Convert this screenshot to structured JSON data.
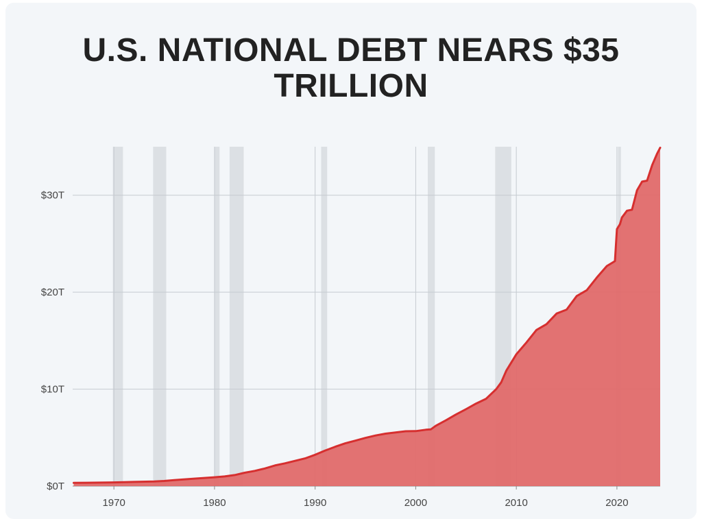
{
  "chart_data": {
    "type": "area",
    "title_lines": [
      "U.S. NATIONAL DEBT NEARS $35",
      "TRILLION"
    ],
    "xlabel": "",
    "ylabel": "",
    "x_ticks": [
      1970,
      1980,
      1990,
      2000,
      2010,
      2020
    ],
    "y_ticks": [
      {
        "value": 0,
        "label": "$0T"
      },
      {
        "value": 10,
        "label": "$10T"
      },
      {
        "value": 20,
        "label": "$20T"
      },
      {
        "value": 30,
        "label": "$30T"
      }
    ],
    "xlim": [
      1965.9,
      2024.3
    ],
    "ylim": [
      0,
      35
    ],
    "units": "trillions of dollars",
    "grid": true,
    "series": [
      {
        "color": "#d62f2f",
        "fill": "#e06a6a",
        "x": [
          1966,
          1968,
          1970,
          1972,
          1974,
          1975,
          1976,
          1978,
          1980,
          1981,
          1982,
          1983,
          1984,
          1985,
          1986,
          1987,
          1988,
          1989,
          1990,
          1991,
          1992,
          1993,
          1994,
          1995,
          1996,
          1997,
          1998,
          1999,
          2000,
          2001,
          2001.5,
          2002,
          2003,
          2004,
          2005,
          2006,
          2007,
          2008,
          2008.5,
          2009,
          2010,
          2011,
          2012,
          2013,
          2014,
          2015,
          2016,
          2017,
          2018,
          2019,
          2019.8,
          2020.0,
          2020.3,
          2020.5,
          2021,
          2021.5,
          2022,
          2022.5,
          2023,
          2023.5,
          2024,
          2024.3
        ],
        "values": [
          0.33,
          0.35,
          0.38,
          0.43,
          0.48,
          0.53,
          0.62,
          0.77,
          0.91,
          1.0,
          1.14,
          1.38,
          1.57,
          1.82,
          2.13,
          2.35,
          2.6,
          2.86,
          3.23,
          3.67,
          4.06,
          4.41,
          4.69,
          4.97,
          5.22,
          5.41,
          5.53,
          5.66,
          5.67,
          5.81,
          5.85,
          6.23,
          6.78,
          7.38,
          7.93,
          8.51,
          9.01,
          10.0,
          10.7,
          11.9,
          13.6,
          14.8,
          16.1,
          16.7,
          17.8,
          18.2,
          19.6,
          20.2,
          21.5,
          22.7,
          23.2,
          26.5,
          27.0,
          27.7,
          28.4,
          28.5,
          30.5,
          31.4,
          31.5,
          33.1,
          34.3,
          34.9
        ]
      }
    ],
    "recession_bands": [
      [
        1969.9,
        1970.9
      ],
      [
        1973.9,
        1975.2
      ],
      [
        1980.0,
        1980.5
      ],
      [
        1981.5,
        1982.9
      ],
      [
        1990.6,
        1991.2
      ],
      [
        2001.2,
        2001.9
      ],
      [
        2007.9,
        2009.5
      ],
      [
        2020.1,
        2020.4
      ]
    ]
  }
}
